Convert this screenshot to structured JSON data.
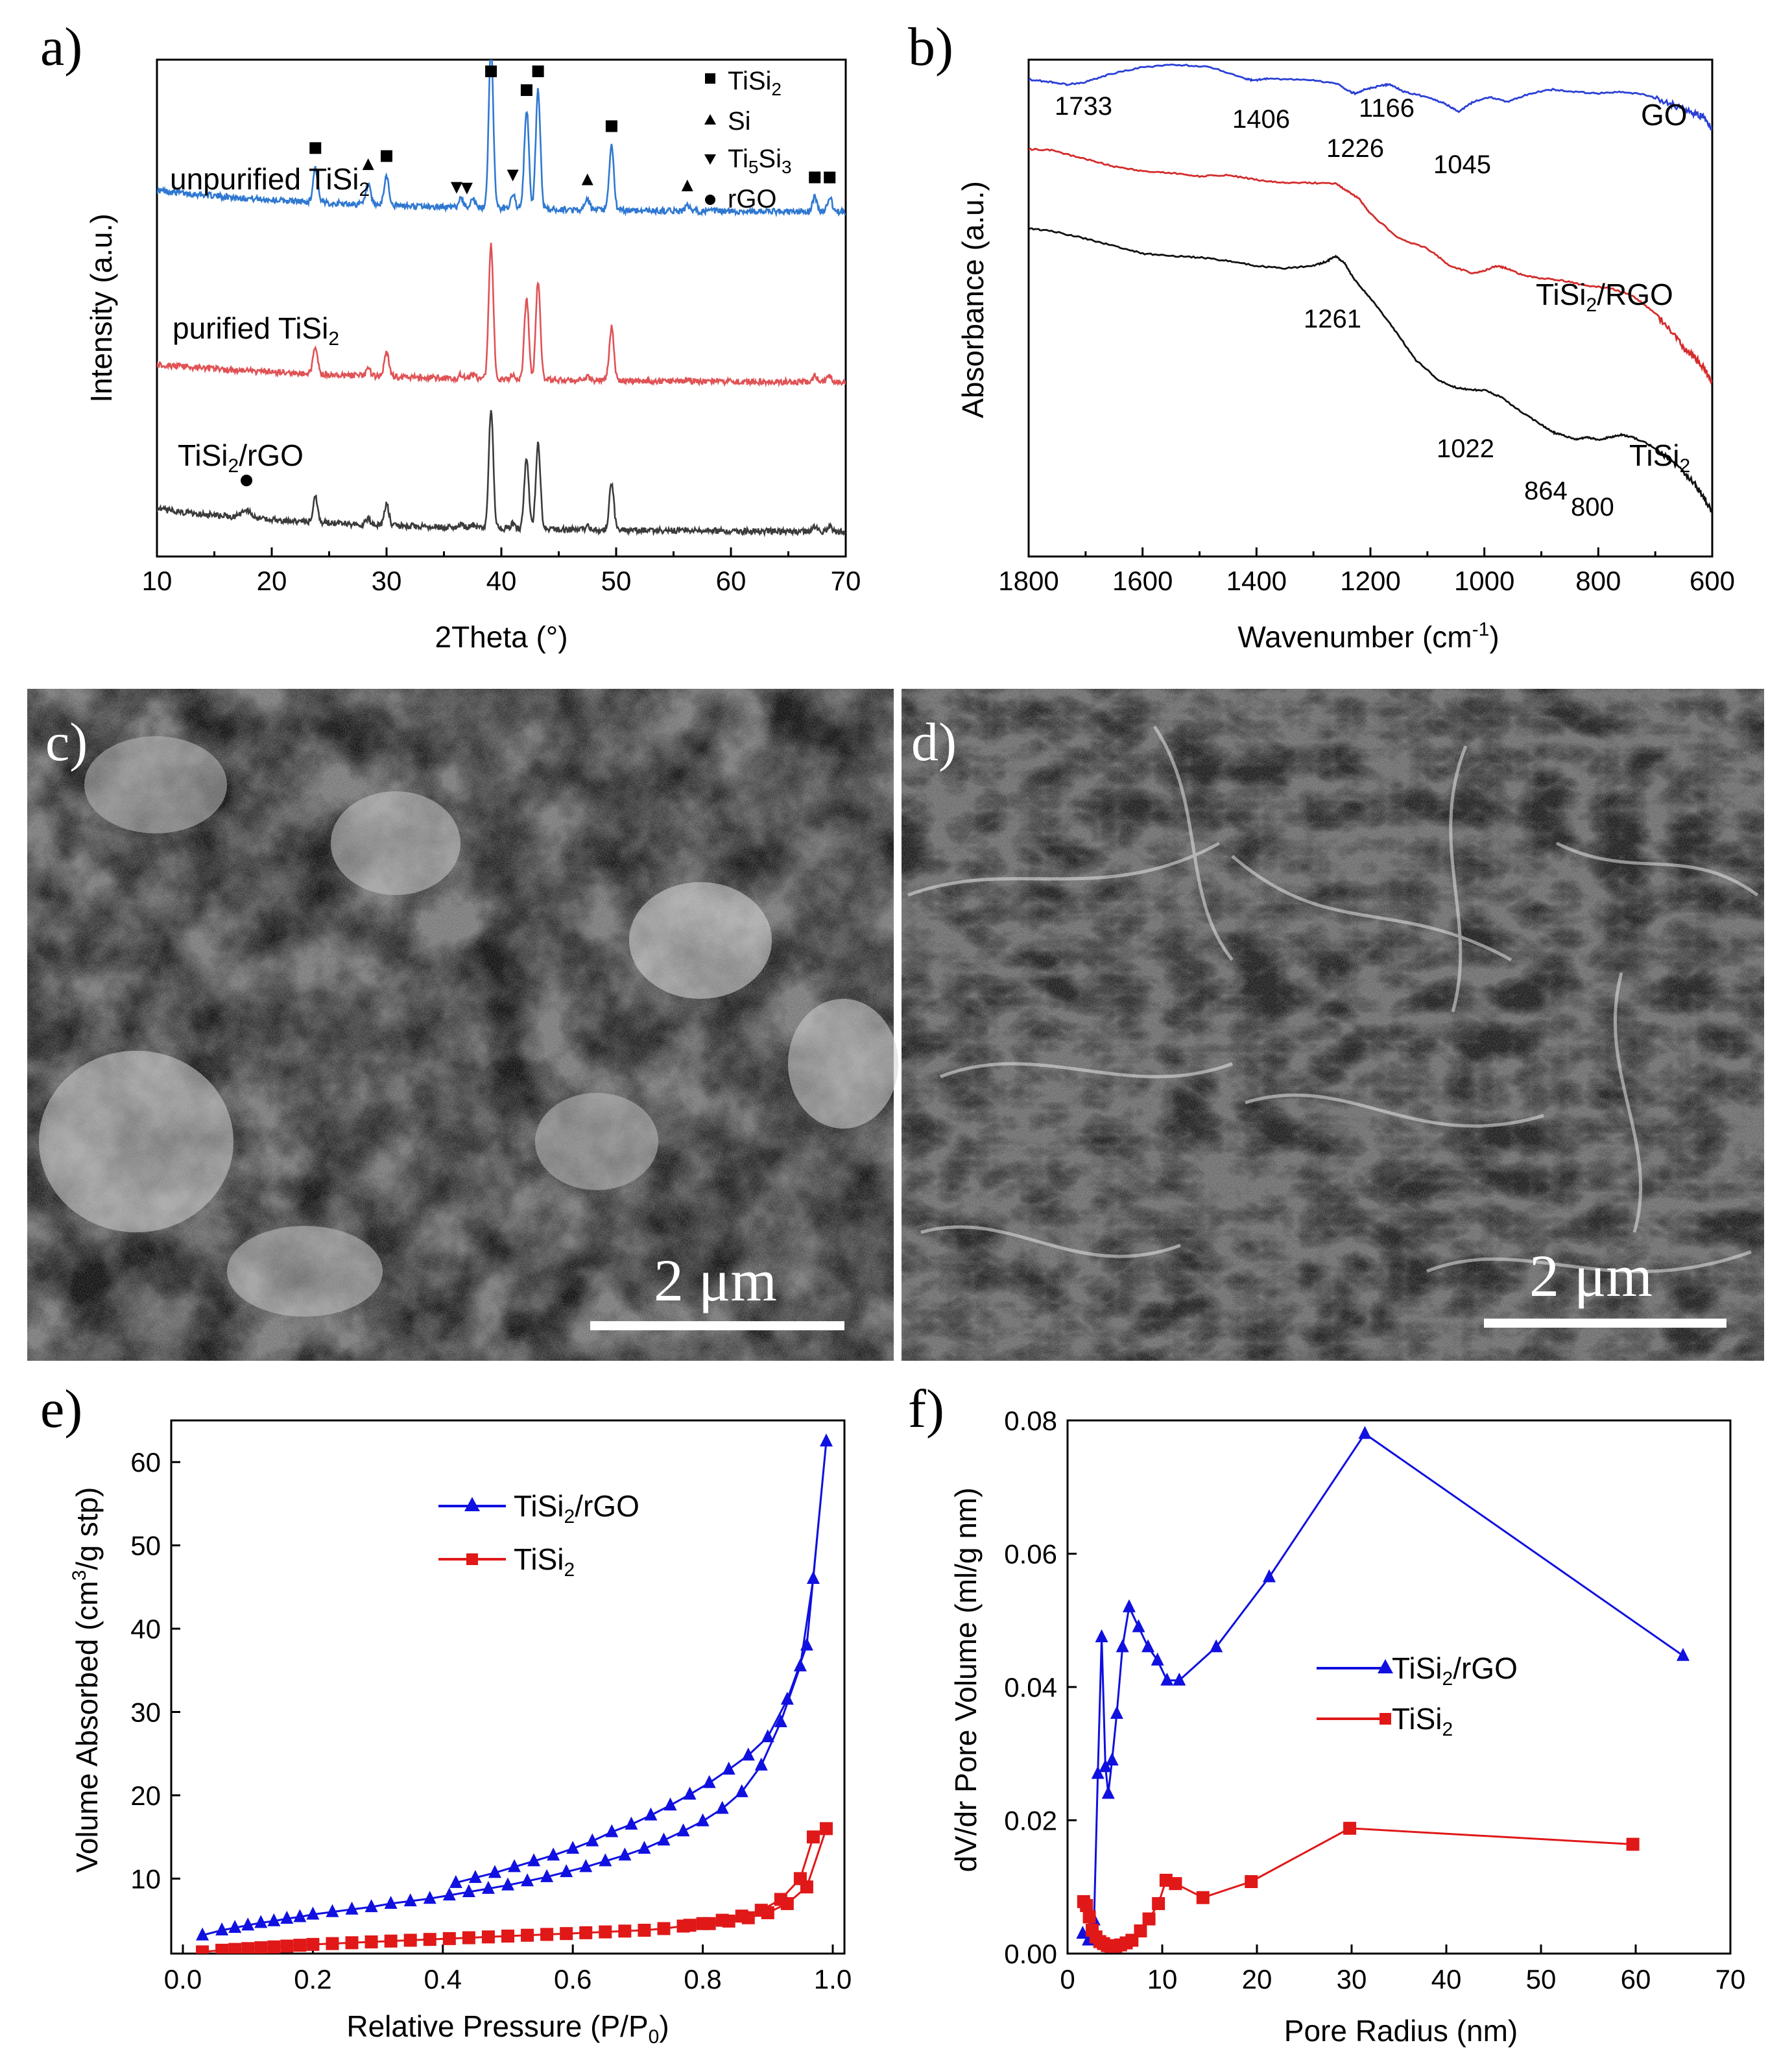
{
  "chart_data": [
    {
      "panel": "a)",
      "type": "line",
      "xlabel": "2Theta (°)",
      "ylabel": "Intensity (a.u.)",
      "xlim": [
        10,
        70
      ],
      "xticks": [
        "10",
        "20",
        "30",
        "40",
        "50",
        "60",
        "70"
      ],
      "series": [
        {
          "name": "unpurified TiSi2",
          "label": "unpurified TiSi",
          "label_sub": "2",
          "color": "#2f78d1",
          "offset": 0.68,
          "scale": 1.0
        },
        {
          "name": "purified TiSi2",
          "label": "purified TiSi",
          "label_sub": "2",
          "color": "#e05255",
          "offset": 0.34,
          "scale": 0.82
        },
        {
          "name": "TiSi2/rGO",
          "label": "TiSi",
          "label_sub": "2",
          "label_tail": "/rGO",
          "color": "#3b3b3b",
          "offset": 0.04,
          "scale": 0.72
        }
      ],
      "peaks": [
        {
          "x": 23.8,
          "h": 0.07
        },
        {
          "x": 28.4,
          "h": 0.04
        },
        {
          "x": 30.0,
          "h": 0.06
        },
        {
          "x": 36.5,
          "h": 0.02
        },
        {
          "x": 37.5,
          "h": 0.02
        },
        {
          "x": 39.1,
          "h": 0.33
        },
        {
          "x": 41.0,
          "h": 0.03
        },
        {
          "x": 42.2,
          "h": 0.2
        },
        {
          "x": 43.2,
          "h": 0.24
        },
        {
          "x": 47.5,
          "h": 0.02
        },
        {
          "x": 49.6,
          "h": 0.13
        },
        {
          "x": 56.2,
          "h": 0.01
        },
        {
          "x": 67.3,
          "h": 0.03
        },
        {
          "x": 68.6,
          "h": 0.03
        }
      ],
      "markers": [
        {
          "x": 23.8,
          "sym": "square"
        },
        {
          "x": 28.4,
          "sym": "triangle"
        },
        {
          "x": 30.0,
          "sym": "square"
        },
        {
          "x": 36.1,
          "sym": "triangle-down"
        },
        {
          "x": 37.0,
          "sym": "triangle-down"
        },
        {
          "x": 39.1,
          "sym": "square"
        },
        {
          "x": 41.0,
          "sym": "triangle-down"
        },
        {
          "x": 42.2,
          "sym": "square"
        },
        {
          "x": 43.2,
          "sym": "square"
        },
        {
          "x": 47.5,
          "sym": "triangle"
        },
        {
          "x": 49.6,
          "sym": "square"
        },
        {
          "x": 56.2,
          "sym": "triangle"
        },
        {
          "x": 67.3,
          "sym": "square"
        },
        {
          "x": 68.6,
          "sym": "square"
        }
      ],
      "rgo_marker": {
        "x": 17.8,
        "sym": "circle"
      },
      "legend": [
        {
          "sym": "square",
          "text": "TiSi",
          "sub": "2",
          "tail": ""
        },
        {
          "sym": "triangle",
          "text": "Si",
          "sub": "",
          "tail": ""
        },
        {
          "sym": "triangle-down",
          "text": "Ti",
          "sub": "5",
          "tail": "Si",
          "sub2": "3"
        },
        {
          "sym": "circle",
          "text": "rGO",
          "sub": "",
          "tail": ""
        }
      ]
    },
    {
      "panel": "b)",
      "type": "line",
      "xlabel": "Wavenumber (cm",
      "xlabel_sup": "-1",
      "xlabel_tail": ")",
      "ylabel": "Absorbance (a.u.)",
      "xlim": [
        1800,
        600
      ],
      "xticks": [
        "1800",
        "1600",
        "1400",
        "1200",
        "1000",
        "800",
        "600"
      ],
      "series": [
        {
          "name": "GO",
          "label": "GO",
          "color": "#2b3fd6",
          "x": [
            1800,
            1760,
            1733,
            1700,
            1660,
            1600,
            1540,
            1480,
            1420,
            1406,
            1380,
            1300,
            1260,
            1235,
            1226,
            1210,
            1180,
            1166,
            1140,
            1100,
            1070,
            1045,
            1020,
            990,
            960,
            920,
            880,
            840,
            800,
            760,
            720,
            680,
            650,
            630,
            615,
            600
          ],
          "y": [
            0.96,
            0.955,
            0.95,
            0.955,
            0.97,
            0.985,
            0.99,
            0.985,
            0.962,
            0.958,
            0.962,
            0.958,
            0.952,
            0.935,
            0.932,
            0.94,
            0.948,
            0.95,
            0.935,
            0.925,
            0.912,
            0.895,
            0.915,
            0.925,
            0.915,
            0.932,
            0.94,
            0.935,
            0.932,
            0.935,
            0.93,
            0.915,
            0.9,
            0.89,
            0.885,
            0.86
          ]
        },
        {
          "name": "TiSi2/RGO",
          "label": "TiSi",
          "label_sub": "2",
          "label_tail": "/RGO",
          "color": "#d42c2c",
          "x": [
            1800,
            1760,
            1700,
            1650,
            1600,
            1550,
            1500,
            1450,
            1400,
            1350,
            1300,
            1260,
            1240,
            1220,
            1200,
            1150,
            1100,
            1060,
            1020,
            1000,
            980,
            960,
            930,
            900,
            860,
            820,
            780,
            740,
            700,
            670,
            650,
            630,
            615,
            600
          ],
          "y": [
            0.82,
            0.818,
            0.8,
            0.785,
            0.775,
            0.772,
            0.765,
            0.768,
            0.758,
            0.752,
            0.752,
            0.75,
            0.735,
            0.72,
            0.69,
            0.64,
            0.62,
            0.585,
            0.57,
            0.575,
            0.585,
            0.58,
            0.565,
            0.56,
            0.555,
            0.545,
            0.54,
            0.525,
            0.49,
            0.45,
            0.42,
            0.4,
            0.38,
            0.35
          ]
        },
        {
          "name": "TiSi2",
          "label": "TiSi",
          "label_sub": "2",
          "color": "#111111",
          "x": [
            1800,
            1760,
            1700,
            1650,
            1600,
            1550,
            1500,
            1450,
            1400,
            1350,
            1300,
            1275,
            1261,
            1245,
            1230,
            1200,
            1160,
            1120,
            1080,
            1050,
            1022,
            1000,
            970,
            940,
            900,
            880,
            864,
            840,
            820,
            800,
            780,
            760,
            740,
            710,
            680,
            650,
            630,
            615,
            600
          ],
          "y": [
            0.66,
            0.655,
            0.64,
            0.625,
            0.61,
            0.605,
            0.602,
            0.595,
            0.585,
            0.58,
            0.585,
            0.595,
            0.605,
            0.59,
            0.56,
            0.52,
            0.46,
            0.395,
            0.355,
            0.34,
            0.335,
            0.335,
            0.32,
            0.295,
            0.265,
            0.25,
            0.245,
            0.235,
            0.24,
            0.235,
            0.24,
            0.245,
            0.24,
            0.225,
            0.2,
            0.17,
            0.145,
            0.12,
            0.09
          ]
        }
      ],
      "annotations": [
        "1733",
        "1406",
        "1226",
        "1166",
        "1045",
        "1261",
        "1022",
        "864",
        "800"
      ]
    },
    {
      "panel": "e)",
      "type": "scatter",
      "xlabel": "Relative Pressure (P/P",
      "xlabel_sub": "0",
      "xlabel_tail": ")",
      "ylabel": "Volume Absorbed (cm",
      "ylabel_sup": "3",
      "ylabel_tail": "/g stp)",
      "xlim": [
        0.0,
        1.0
      ],
      "ylim": [
        1,
        65
      ],
      "xticks": [
        "0.0",
        "0.2",
        "0.4",
        "0.6",
        "0.8",
        "1.0"
      ],
      "yticks": [
        "10",
        "20",
        "30",
        "40",
        "50",
        "60"
      ],
      "series": [
        {
          "name": "TiSi2/rGO",
          "legend": "TiSi",
          "legend_sub": "2",
          "legend_tail": "/rGO",
          "color": "#1010e0",
          "marker": "triangle",
          "x": [
            0.03,
            0.06,
            0.08,
            0.1,
            0.12,
            0.14,
            0.16,
            0.18,
            0.2,
            0.23,
            0.26,
            0.29,
            0.32,
            0.35,
            0.38,
            0.41,
            0.44,
            0.47,
            0.5,
            0.53,
            0.56,
            0.59,
            0.62,
            0.65,
            0.68,
            0.71,
            0.74,
            0.77,
            0.8,
            0.83,
            0.86,
            0.89,
            0.92,
            0.95,
            0.97,
            0.99,
            0.96,
            0.93,
            0.9,
            0.87,
            0.84,
            0.81,
            0.78,
            0.75,
            0.72,
            0.69,
            0.66,
            0.63,
            0.6,
            0.57,
            0.54,
            0.51,
            0.48,
            0.45,
            0.42
          ],
          "y": [
            3.2,
            3.8,
            4.1,
            4.4,
            4.7,
            4.9,
            5.2,
            5.4,
            5.7,
            6.0,
            6.3,
            6.6,
            7.0,
            7.3,
            7.6,
            8.0,
            8.4,
            8.8,
            9.2,
            9.7,
            10.2,
            10.8,
            11.4,
            12.1,
            12.8,
            13.6,
            14.6,
            15.7,
            16.9,
            18.4,
            20.4,
            23.6,
            28.8,
            35.5,
            46.0,
            62.5,
            38.0,
            31.5,
            27.0,
            24.8,
            23.1,
            21.5,
            20.1,
            18.8,
            17.6,
            16.5,
            15.6,
            14.5,
            13.6,
            12.8,
            12.1,
            11.4,
            10.7,
            10.1,
            9.5
          ]
        },
        {
          "name": "TiSi2",
          "legend": "TiSi",
          "legend_sub": "2",
          "color": "#e01818",
          "marker": "square",
          "x": [
            0.03,
            0.06,
            0.08,
            0.1,
            0.12,
            0.14,
            0.16,
            0.18,
            0.2,
            0.23,
            0.26,
            0.29,
            0.32,
            0.35,
            0.38,
            0.41,
            0.44,
            0.47,
            0.5,
            0.53,
            0.56,
            0.59,
            0.62,
            0.65,
            0.68,
            0.71,
            0.74,
            0.77,
            0.8,
            0.83,
            0.86,
            0.89,
            0.92,
            0.95,
            0.97,
            0.99,
            0.96,
            0.93,
            0.9,
            0.87,
            0.84,
            0.81,
            0.78
          ],
          "y": [
            1.2,
            1.4,
            1.5,
            1.6,
            1.7,
            1.8,
            1.9,
            2.0,
            2.1,
            2.2,
            2.3,
            2.4,
            2.5,
            2.6,
            2.7,
            2.8,
            2.9,
            3.0,
            3.1,
            3.2,
            3.3,
            3.4,
            3.5,
            3.6,
            3.7,
            3.8,
            4.0,
            4.3,
            4.6,
            5.0,
            5.5,
            6.2,
            7.5,
            10.0,
            15.0,
            16.0,
            9.0,
            7.0,
            5.9,
            5.3,
            4.9,
            4.6,
            4.4
          ]
        }
      ]
    },
    {
      "panel": "f)",
      "type": "line",
      "xlabel": "Pore Radius (nm)",
      "ylabel": "dV/dr Pore Volume (ml/g nm)",
      "xlim": [
        0,
        70
      ],
      "ylim": [
        0.0,
        0.08
      ],
      "xticks": [
        "0",
        "10",
        "20",
        "30",
        "40",
        "50",
        "60",
        "70"
      ],
      "yticks": [
        "0.00",
        "0.02",
        "0.04",
        "0.06",
        "0.08"
      ],
      "series": [
        {
          "name": "TiSi2/rGO",
          "legend": "TiSi",
          "legend_sub": "2",
          "legend_tail": "/rGO",
          "color": "#1010e0",
          "marker": "triangle",
          "x": [
            1.6,
            2.2,
            2.8,
            3.2,
            3.6,
            4.0,
            4.3,
            4.7,
            5.2,
            5.8,
            6.5,
            7.5,
            8.5,
            9.5,
            10.5,
            11.8,
            15.7,
            21.3,
            31.4,
            65.0
          ],
          "y": [
            0.003,
            0.002,
            0.005,
            0.027,
            0.0475,
            0.028,
            0.024,
            0.029,
            0.036,
            0.046,
            0.052,
            0.049,
            0.046,
            0.044,
            0.041,
            0.041,
            0.046,
            0.0565,
            0.078,
            0.0447
          ]
        },
        {
          "name": "TiSi2",
          "legend": "TiSi",
          "legend_sub": "2",
          "color": "#e01818",
          "marker": "square",
          "x": [
            1.7,
            2.0,
            2.3,
            2.6,
            3.0,
            3.4,
            3.8,
            4.2,
            4.6,
            5.1,
            5.6,
            6.2,
            6.8,
            7.7,
            8.6,
            9.6,
            10.4,
            11.4,
            14.3,
            19.4,
            29.8,
            59.7
          ],
          "y": [
            0.0078,
            0.0072,
            0.0055,
            0.0035,
            0.0025,
            0.0018,
            0.0015,
            0.0012,
            0.0011,
            0.0011,
            0.0013,
            0.0016,
            0.002,
            0.0034,
            0.0052,
            0.0075,
            0.011,
            0.0105,
            0.0084,
            0.0108,
            0.0188,
            0.0164
          ]
        }
      ]
    }
  ],
  "images": [
    {
      "panel": "c)",
      "scale_label": "2 μm",
      "description": "SEM micrograph, granular aggregated particles"
    },
    {
      "panel": "d)",
      "scale_label": "2 μm",
      "description": "SEM micrograph, wrinkled graphene-wrapped sheets"
    }
  ],
  "annotations_b": {
    "a1733": "1733",
    "a1406": "1406",
    "a1226": "1226",
    "a1166": "1166",
    "a1045": "1045",
    "a1261": "1261",
    "a1022": "1022",
    "a864": "864",
    "a800": "800"
  }
}
